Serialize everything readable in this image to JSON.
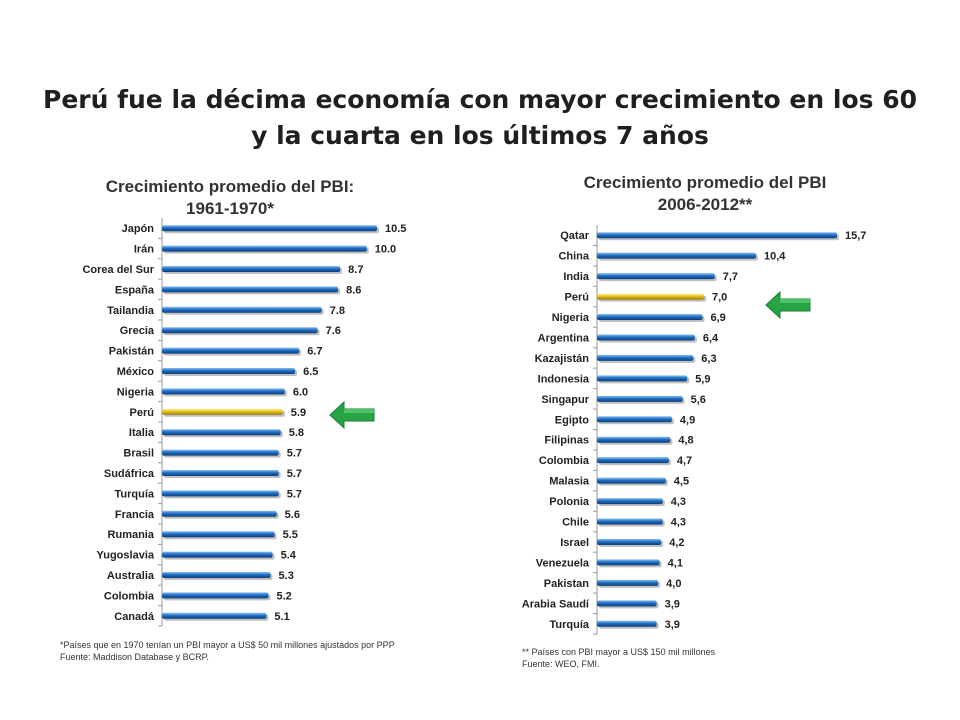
{
  "slide_title": "Perú fue la décima economía con mayor crecimiento en los 60 y la cuarta en los últimos 7 años",
  "colors": {
    "bar_blue": "#1f6fc4",
    "bar_highlight": "#e8c21a",
    "arrow_green": "#27a544"
  },
  "icons": {
    "highlight_arrow": "green-left-arrow-icon"
  },
  "chart_data": [
    {
      "type": "bar",
      "orientation": "horizontal",
      "title_line1": "Crecimiento promedio del PBI:",
      "title_line2": "1961-1970*",
      "categories": [
        "Japón",
        "Irán",
        "Corea del Sur",
        "España",
        "Tailandia",
        "Grecia",
        "Pakistán",
        "México",
        "Nigeria",
        "Perú",
        "Italia",
        "Brasil",
        "Sudáfrica",
        "Turquía",
        "Francia",
        "Rumania",
        "Yugoslavia",
        "Australia",
        "Colombia",
        "Canadá"
      ],
      "values": [
        10.5,
        10.0,
        8.7,
        8.6,
        7.8,
        7.6,
        6.7,
        6.5,
        6.0,
        5.9,
        5.8,
        5.7,
        5.7,
        5.7,
        5.6,
        5.5,
        5.4,
        5.3,
        5.2,
        5.1
      ],
      "value_labels": [
        "10.5",
        "10.0",
        "8.7",
        "8.6",
        "7.8",
        "7.6",
        "6.7",
        "6.5",
        "6.0",
        "5.9",
        "5.8",
        "5.7",
        "5.7",
        "5.7",
        "5.6",
        "5.5",
        "5.4",
        "5.3",
        "5.2",
        "5.1"
      ],
      "highlight": "Perú",
      "xlim": [
        0,
        10.5
      ],
      "grid": false,
      "note_line1": "*Países que en 1970 tenían un PBI mayor a US$ 50 mil millones ajustados por PPP",
      "note_line2": "Fuente: Maddison Database y BCRP."
    },
    {
      "type": "bar",
      "orientation": "horizontal",
      "title_line1": "Crecimiento promedio del PBI",
      "title_line2": "2006-2012**",
      "categories": [
        "Qatar",
        "China",
        "India",
        "Perú",
        "Nigeria",
        "Argentina",
        "Kazajistán",
        "Indonesia",
        "Singapur",
        "Egipto",
        "Filipinas",
        "Colombia",
        "Malasia",
        "Polonia",
        "Chile",
        "Israel",
        "Venezuela",
        "Pakistan",
        "Arabia Saudí",
        "Turquía"
      ],
      "values": [
        15.7,
        10.4,
        7.7,
        7.0,
        6.9,
        6.4,
        6.3,
        5.9,
        5.6,
        4.9,
        4.8,
        4.7,
        4.5,
        4.3,
        4.3,
        4.2,
        4.1,
        4.0,
        3.9,
        3.9
      ],
      "value_labels": [
        "15,7",
        "10,4",
        "7,7",
        "7,0",
        "6,9",
        "6,4",
        "6,3",
        "5,9",
        "5,6",
        "4,9",
        "4,8",
        "4,7",
        "4,5",
        "4,3",
        "4,3",
        "4,2",
        "4,1",
        "4,0",
        "3,9",
        "3,9"
      ],
      "highlight": "Perú",
      "xlim": [
        0,
        15.7
      ],
      "grid": false,
      "note_line1": "** Países con PBI mayor a US$ 150 mil millones",
      "note_line2": "Fuente: WEO, FMI."
    }
  ]
}
